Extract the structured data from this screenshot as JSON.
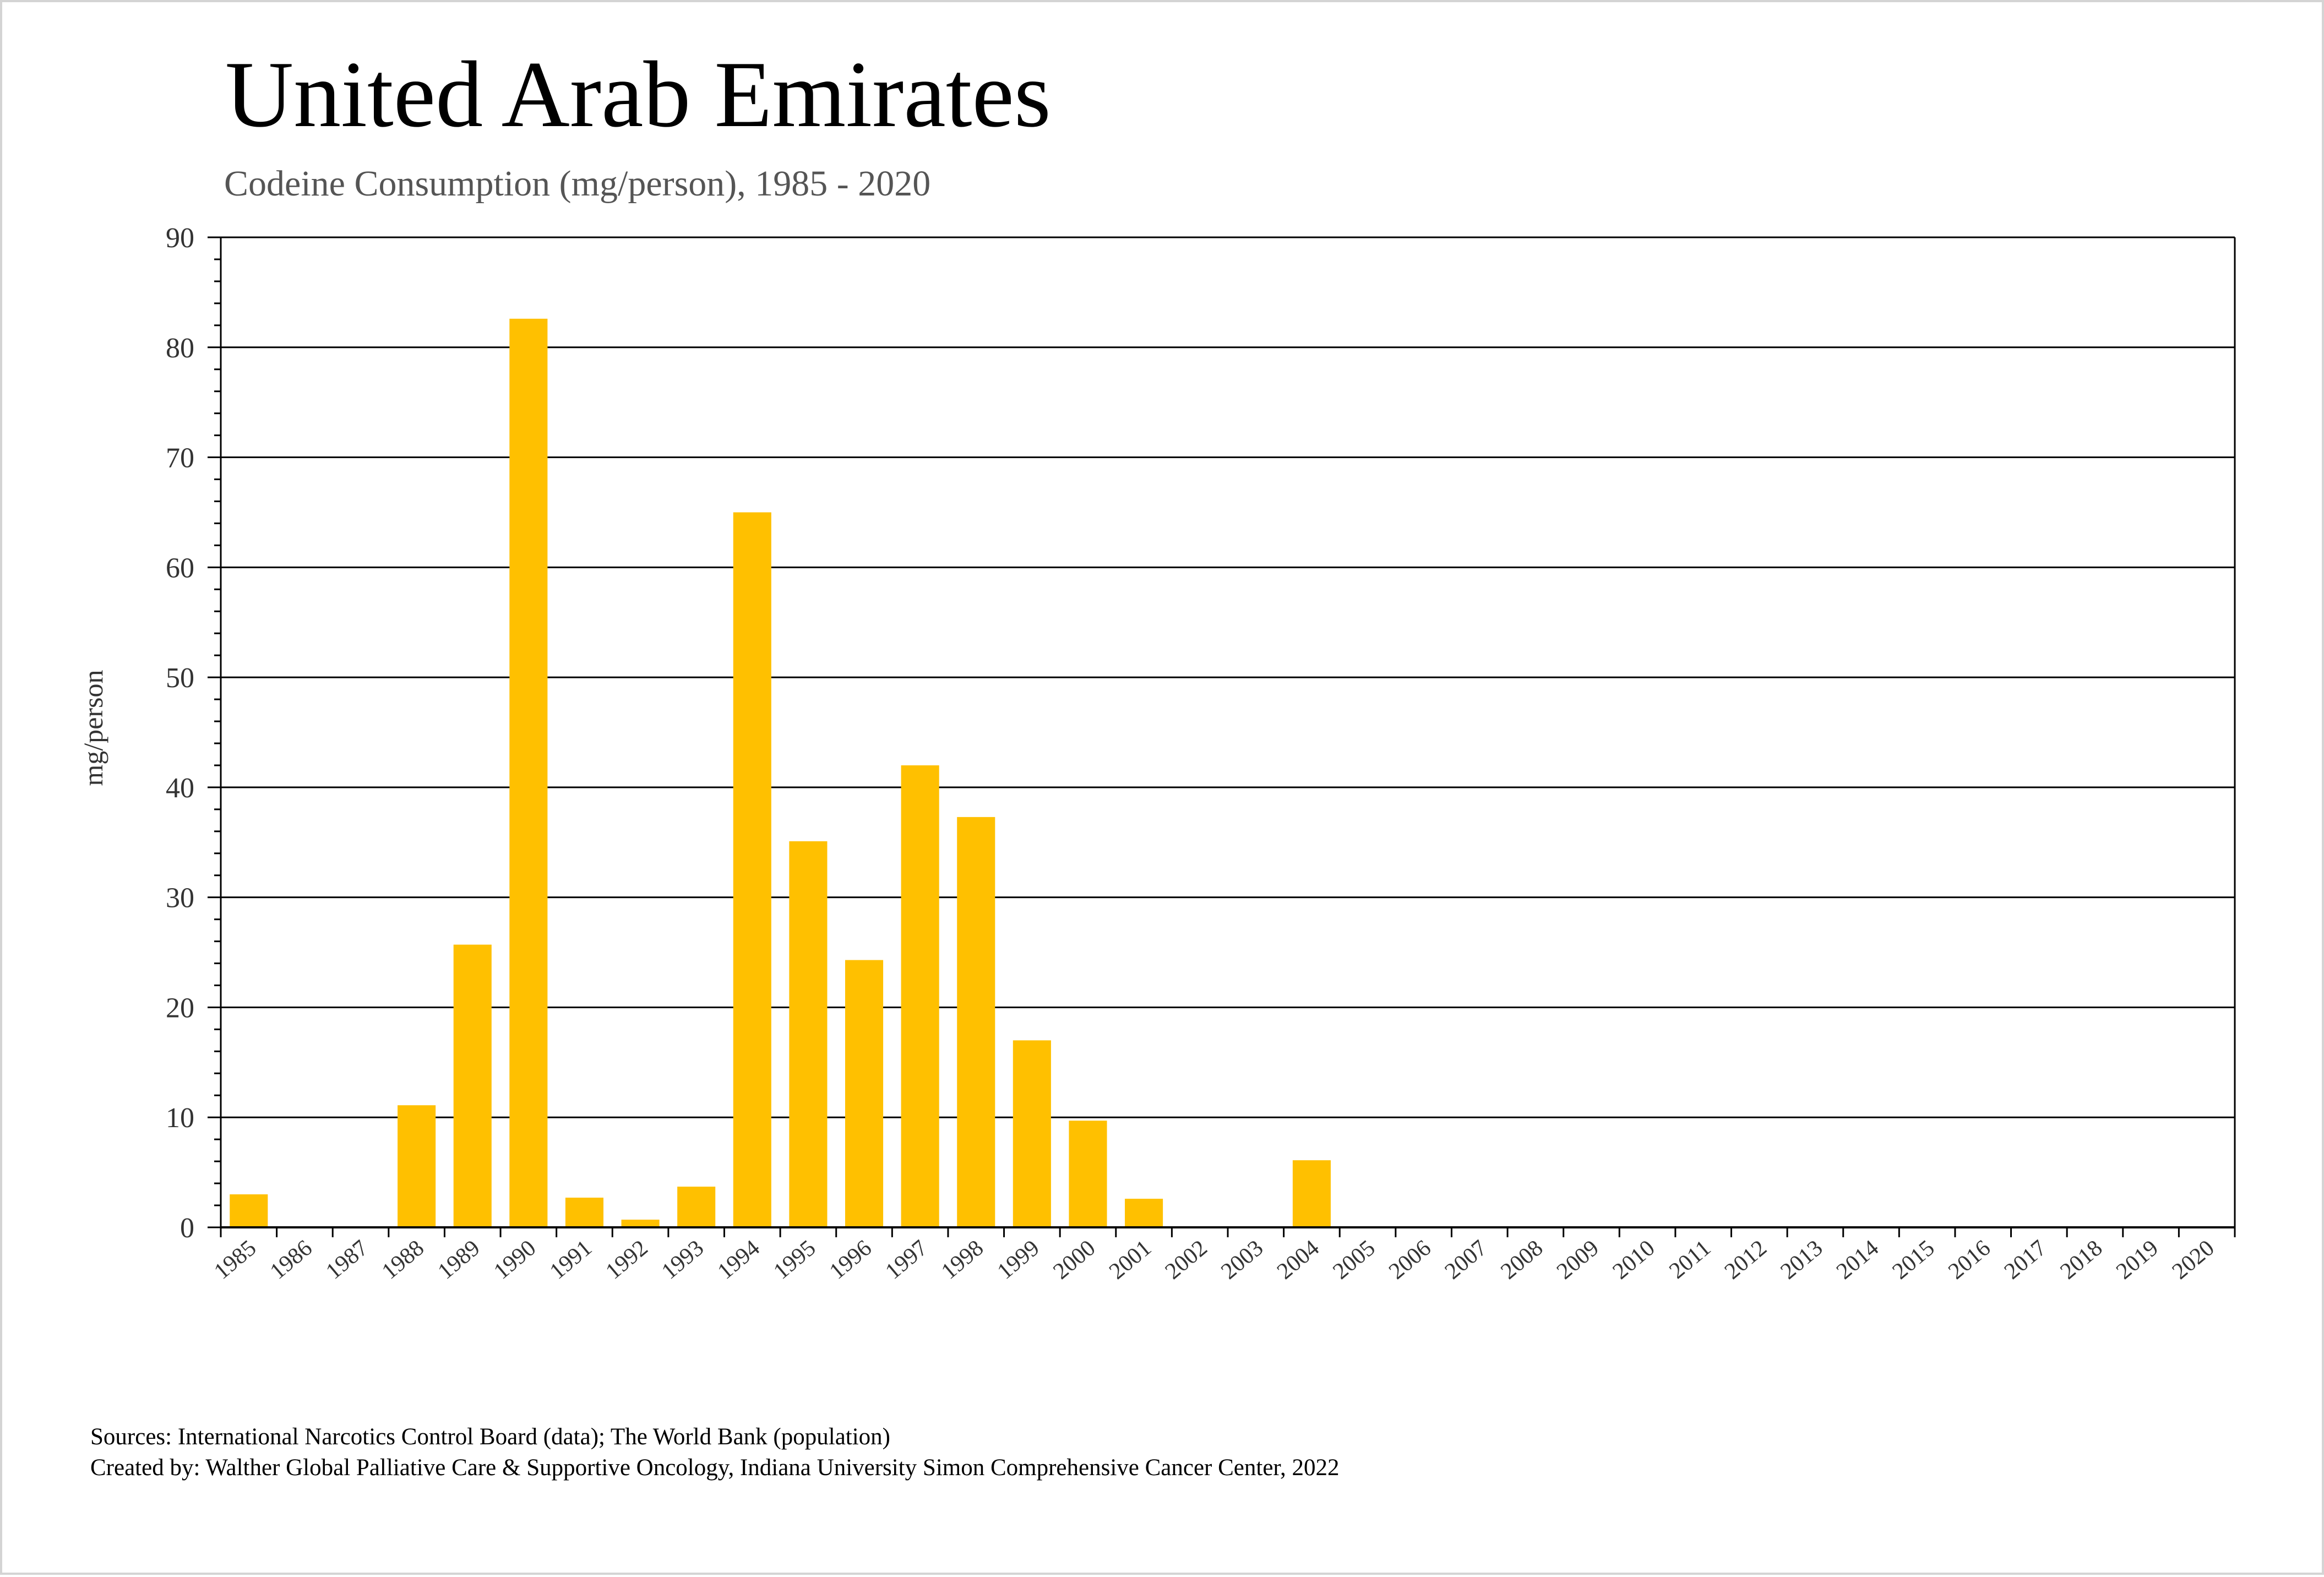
{
  "colors": {
    "bar": "#FFC000",
    "grid": "#000000",
    "text": "#333333",
    "subtitle": "#555555"
  },
  "chart_data": {
    "type": "bar",
    "title": "United Arab Emirates",
    "subtitle": "Codeine Consumption (mg/person), 1985 - 2020",
    "xlabel": "",
    "ylabel": "mg/person",
    "ylim": [
      0,
      90
    ],
    "yticks": [
      0,
      10,
      20,
      30,
      40,
      50,
      60,
      70,
      80,
      90
    ],
    "grid": true,
    "categories": [
      "1985",
      "1986",
      "1987",
      "1988",
      "1989",
      "1990",
      "1991",
      "1992",
      "1993",
      "1994",
      "1995",
      "1996",
      "1997",
      "1998",
      "1999",
      "2000",
      "2001",
      "2002",
      "2003",
      "2004",
      "2005",
      "2006",
      "2007",
      "2008",
      "2009",
      "2010",
      "2011",
      "2012",
      "2013",
      "2014",
      "2015",
      "2016",
      "2017",
      "2018",
      "2019",
      "2020"
    ],
    "series": [
      {
        "name": "Codeine Consumption (mg/person)",
        "values": [
          3.0,
          0.1,
          0,
          11.1,
          25.7,
          82.6,
          2.7,
          0.7,
          3.7,
          65.0,
          35.1,
          24.3,
          42.0,
          37.3,
          17.0,
          9.7,
          2.6,
          0,
          0,
          6.1,
          0,
          0,
          0,
          0,
          0.05,
          0,
          0,
          0,
          0.05,
          0,
          0,
          0,
          0,
          0,
          0,
          0
        ]
      }
    ]
  },
  "footer": {
    "sources": "Sources: International Narcotics Control Board (data); The World Bank (population)",
    "created_by": "Created by: Walther Global Palliative Care & Supportive Oncology, Indiana University Simon Comprehensive Cancer Center, 2022"
  }
}
